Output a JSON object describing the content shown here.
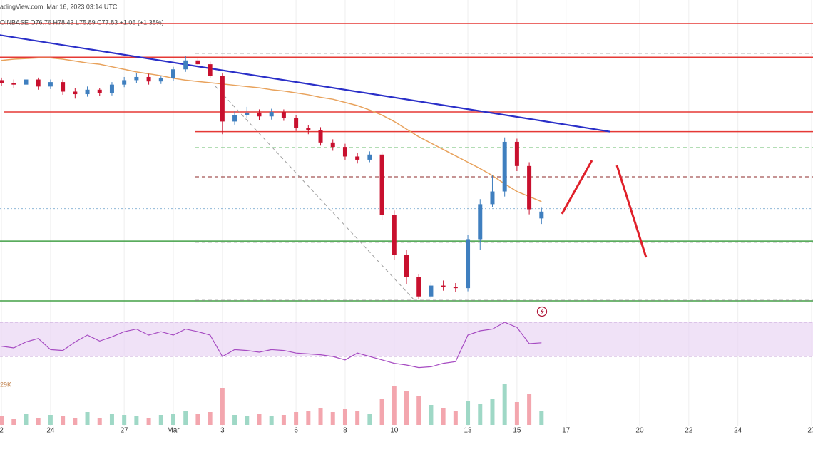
{
  "chart_data": [
    {
      "type": "candlestick",
      "title": "adingView.com, Mar 16, 2023 03:14 UTC",
      "subtitle": "OINBASE O76.76 H78.43 L75.89 C77.83 +1.06 (+1.38%)",
      "x": [
        0,
        0.5,
        1,
        1.5,
        2,
        2.5,
        3,
        3.5,
        4,
        4.5,
        5,
        5.5,
        6,
        6.5,
        7,
        7.5,
        8,
        8.5,
        9,
        9.5,
        10,
        10.5,
        11,
        11.5,
        12,
        12.5,
        13,
        13.5,
        14,
        14.5,
        15,
        15.5,
        16,
        16.5,
        17,
        17.5,
        18,
        18.5,
        19,
        19.5,
        20,
        20.5,
        21,
        21.5,
        22
      ],
      "open": [
        98.5,
        98.0,
        97.8,
        98.6,
        97.5,
        98.2,
        96.7,
        96.3,
        97.0,
        96.5,
        97.8,
        98.5,
        99.0,
        98.3,
        98.8,
        100.2,
        101.6,
        101.0,
        99.2,
        92.0,
        93.0,
        93.4,
        92.8,
        93.5,
        92.6,
        91.0,
        90.6,
        88.7,
        88.0,
        86.5,
        86.0,
        86.8,
        77.3,
        71.0,
        67.5,
        64.5,
        66.2,
        66.0,
        65.8,
        73.5,
        79.0,
        81.0,
        88.8,
        85.0,
        76.76
      ],
      "high": [
        98.9,
        98.6,
        99.2,
        98.9,
        98.6,
        98.6,
        97.2,
        97.5,
        97.3,
        98.2,
        99.0,
        99.6,
        99.5,
        99.1,
        100.6,
        102.3,
        102.0,
        101.4,
        99.6,
        93.6,
        94.3,
        93.9,
        94.0,
        93.9,
        93.0,
        91.4,
        91.1,
        89.2,
        88.5,
        87.0,
        87.3,
        87.2,
        78.0,
        71.8,
        68.0,
        66.8,
        67.0,
        66.6,
        74.2,
        79.8,
        83.5,
        89.5,
        89.3,
        85.6,
        78.43
      ],
      "low": [
        97.6,
        97.3,
        97.2,
        97.0,
        97.1,
        96.2,
        95.6,
        95.9,
        96.0,
        96.1,
        97.4,
        98.0,
        97.8,
        97.9,
        98.4,
        99.8,
        100.5,
        98.8,
        90.0,
        91.5,
        92.5,
        92.2,
        92.3,
        92.1,
        90.5,
        90.0,
        88.2,
        87.4,
        86.0,
        85.4,
        85.6,
        76.5,
        70.2,
        66.4,
        64.0,
        64.2,
        65.4,
        65.2,
        65.3,
        71.8,
        78.5,
        80.2,
        84.2,
        77.4,
        75.89
      ],
      "close": [
        98.0,
        97.8,
        98.6,
        97.5,
        98.2,
        96.7,
        96.3,
        97.0,
        96.5,
        97.8,
        98.5,
        99.0,
        98.3,
        98.8,
        100.2,
        101.6,
        101.0,
        99.2,
        92.0,
        93.0,
        93.4,
        92.8,
        93.5,
        92.6,
        91.0,
        90.6,
        88.7,
        88.0,
        86.5,
        86.0,
        86.8,
        77.3,
        71.0,
        67.5,
        64.5,
        66.2,
        66.0,
        65.8,
        73.5,
        79.0,
        81.0,
        88.8,
        85.0,
        78.2,
        77.83
      ],
      "up_color": "#3f7fbf",
      "down_color": "#c8102e",
      "moving_average": {
        "color": "#e8a25c",
        "values": [
          101.6,
          101.8,
          101.9,
          102.0,
          102.0,
          101.8,
          101.5,
          101.2,
          101.0,
          100.6,
          100.2,
          99.8,
          99.5,
          99.2,
          98.8,
          98.5,
          98.3,
          98.1,
          97.9,
          97.7,
          97.5,
          97.3,
          97.0,
          96.8,
          96.5,
          96.2,
          95.8,
          95.5,
          95.0,
          94.5,
          93.8,
          93.0,
          92.0,
          90.8,
          89.6,
          88.6,
          87.6,
          86.6,
          85.6,
          84.6,
          83.5,
          82.2,
          81.0,
          80.2,
          79.4
        ]
      },
      "levels": [
        {
          "value": 107.4,
          "color": "#e53935",
          "style": "solid",
          "x_start": -0.06
        },
        {
          "value": 102.1,
          "color": "#e53935",
          "style": "solid",
          "x_start": -0.06
        },
        {
          "value": 93.5,
          "color": "#e53935",
          "style": "solid",
          "x_start": 0.1
        },
        {
          "value": 90.4,
          "color": "#e53935",
          "style": "solid",
          "x_start": 7.9
        },
        {
          "value": 73.2,
          "color": "#43a047",
          "style": "solid",
          "x_start": -0.06
        },
        {
          "value": 63.8,
          "color": "#43a047",
          "style": "solid",
          "x_start": -0.06
        },
        {
          "value": 102.7,
          "color": "#b0b0b0",
          "style": "dashed",
          "x_start": 7.9
        },
        {
          "value": 87.9,
          "color": "#66bb6a",
          "style": "dashed",
          "x_start": 7.9
        },
        {
          "value": 83.3,
          "color": "#8d2a2a",
          "style": "dashed",
          "x_start": 7.9
        },
        {
          "value": 78.3,
          "color": "#8fb8d8",
          "style": "dotted",
          "x_start": -0.06
        },
        {
          "value": 73.0,
          "color": "#a0a0a0",
          "style": "dashed",
          "x_start": 7.9
        },
        {
          "value": 63.9,
          "color": "#a0a0a0",
          "style": "dashed",
          "x_start": 7.9
        }
      ],
      "lines": [
        {
          "x": [
            -0.1,
            24.8
          ],
          "y": [
            105.6,
            90.4
          ],
          "color": "#2a2fc8",
          "style": "solid"
        },
        {
          "x": [
            8.7,
            16.8
          ],
          "y": [
            97.6,
            64.0
          ],
          "color": "#9e9e9e",
          "style": "dashed"
        }
      ],
      "xlim": [
        -0.06,
        33.06
      ],
      "ylim": [
        62.9,
        108.3
      ],
      "xticks": [
        {
          "value": 0,
          "label": "2"
        },
        {
          "value": 2,
          "label": "24"
        },
        {
          "value": 5,
          "label": "27"
        },
        {
          "value": 7,
          "label": "Mar"
        },
        {
          "value": 9,
          "label": "3"
        },
        {
          "value": 12,
          "label": "6"
        },
        {
          "value": 14,
          "label": "8"
        },
        {
          "value": 16,
          "label": "10"
        },
        {
          "value": 19,
          "label": "13"
        },
        {
          "value": 21,
          "label": "15"
        },
        {
          "value": 23,
          "label": "17"
        },
        {
          "value": 26,
          "label": "20"
        },
        {
          "value": 28,
          "label": "22"
        },
        {
          "value": 30,
          "label": "24"
        },
        {
          "value": 33,
          "label": "27"
        }
      ],
      "grid": true
    },
    {
      "type": "line",
      "color": "#a64bc2",
      "band": [
        30,
        70
      ],
      "band_color": "#e9d6f3",
      "values": [
        42,
        40,
        47,
        51,
        38,
        37,
        47,
        55,
        48,
        53,
        59,
        62,
        55,
        59,
        55,
        62,
        59,
        55,
        30,
        38,
        37,
        35,
        38,
        37,
        34,
        33,
        32,
        30,
        26,
        34,
        30,
        26,
        22,
        20,
        17,
        18,
        22,
        24,
        55,
        60,
        62,
        70,
        64,
        45,
        46
      ],
      "ylim": [
        0,
        100
      ]
    },
    {
      "type": "bar",
      "label": "29K",
      "up_color": "#9fd8c6",
      "down_color": "#f3a6ae",
      "values": [
        6,
        4,
        8,
        5,
        7,
        6,
        5,
        9,
        5,
        8,
        7,
        6,
        5,
        7,
        8,
        10,
        8,
        9,
        26,
        7,
        6,
        8,
        6,
        7,
        9,
        10,
        12,
        9,
        11,
        10,
        8,
        18,
        27,
        24,
        20,
        14,
        12,
        10,
        17,
        15,
        18,
        29,
        16,
        22,
        10
      ],
      "ylim": [
        0,
        30
      ]
    }
  ]
}
